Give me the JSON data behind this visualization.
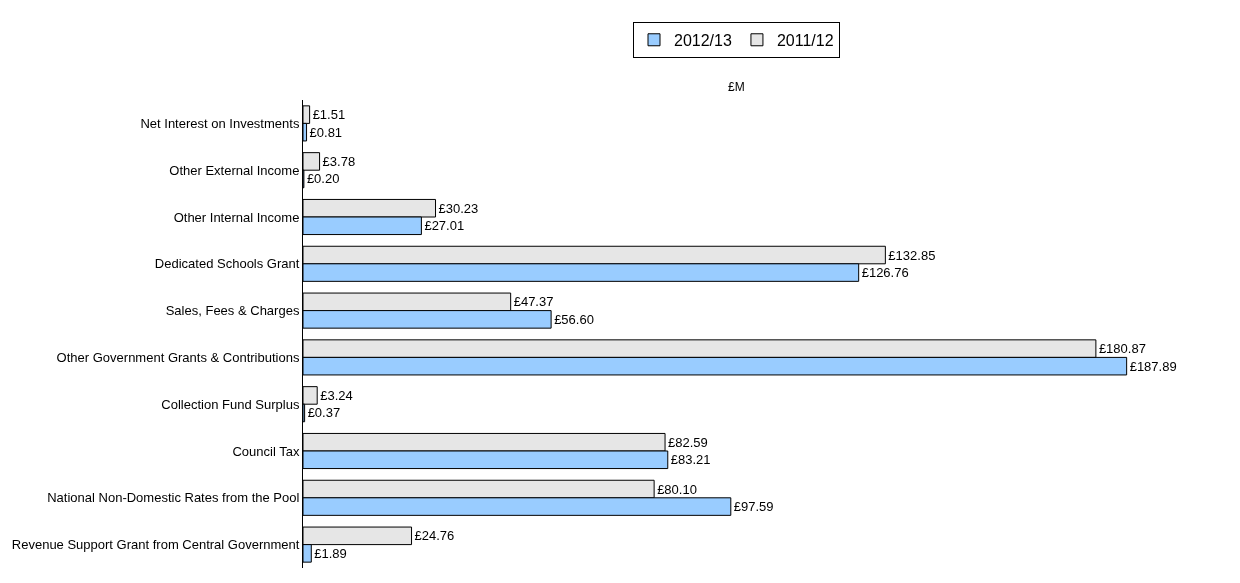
{
  "chart_data": {
    "type": "bar",
    "orientation": "horizontal",
    "subtitle": "£M",
    "legend": "top",
    "categories": [
      "Net Interest on Investments",
      "Other External Income",
      "Other Internal Income",
      "Dedicated Schools Grant",
      "Sales, Fees & Charges",
      "Other Government Grants & Contributions",
      "Collection Fund Surplus",
      "Council Tax",
      "National Non-Domestic Rates from the Pool",
      "Revenue Support Grant from Central Government"
    ],
    "series": [
      {
        "name": "2012/13",
        "color": "#99ccff",
        "values": [
          0.81,
          0.2,
          27.01,
          126.76,
          56.6,
          187.89,
          0.37,
          83.21,
          97.59,
          1.89
        ],
        "value_labels": [
          "£0.81",
          "£0.20",
          "£27.01",
          "£126.76",
          "£56.60",
          "£187.89",
          "£0.37",
          "£83.21",
          "£97.59",
          "£1.89"
        ]
      },
      {
        "name": "2011/12",
        "color": "#e6e6e6",
        "values": [
          1.51,
          3.78,
          30.23,
          132.85,
          47.37,
          180.87,
          3.24,
          82.59,
          80.1,
          24.76
        ],
        "value_labels": [
          "£1.51",
          "£3.78",
          "£30.23",
          "£132.85",
          "£47.37",
          "£180.87",
          "£3.24",
          "£82.59",
          "£80.10",
          "£24.76"
        ]
      }
    ]
  }
}
